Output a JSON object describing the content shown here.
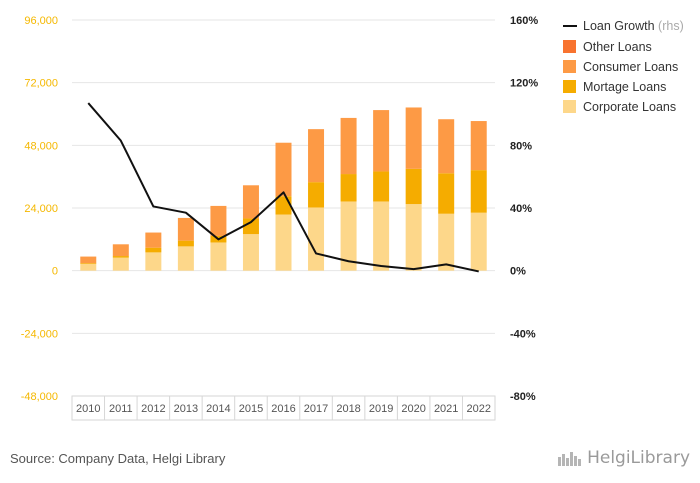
{
  "chart_data": {
    "type": "bar",
    "stacked": true,
    "categories": [
      "2010",
      "2011",
      "2012",
      "2013",
      "2014",
      "2015",
      "2016",
      "2017",
      "2018",
      "2019",
      "2020",
      "2021",
      "2022"
    ],
    "series": [
      {
        "name": "Corporate Loans",
        "color": "#fdd78a",
        "values": [
          2600,
          5000,
          7000,
          9300,
          10800,
          14000,
          21500,
          24200,
          26500,
          26500,
          25500,
          21800,
          22200
        ]
      },
      {
        "name": "Mortage Loans",
        "color": "#f5ac00",
        "values": [
          300,
          600,
          1800,
          2200,
          2500,
          6000,
          7000,
          9700,
          10500,
          11500,
          13500,
          15500,
          16300
        ]
      },
      {
        "name": "Consumer Loans",
        "color": "#fd9a45",
        "values": [
          2500,
          4500,
          5800,
          8700,
          11500,
          12700,
          20500,
          20300,
          21500,
          23500,
          23500,
          20700,
          18800
        ]
      },
      {
        "name": "Other Loans",
        "color": "#f8732f",
        "values": [
          0,
          0,
          0,
          0,
          0,
          0,
          0,
          0,
          0,
          0,
          0,
          0,
          0
        ]
      }
    ],
    "line_series": {
      "name": "Loan Growth",
      "suffix": "(rhs)",
      "color": "#111111",
      "axis": "right",
      "values": [
        107,
        83,
        41,
        37,
        20,
        31,
        50,
        11,
        6,
        3,
        1,
        4,
        -0.5
      ]
    },
    "y_left": {
      "min": -48000,
      "max": 96000,
      "ticks": [
        "96,000",
        "72,000",
        "48,000",
        "24,000",
        "0",
        "-24,000",
        "-48,000"
      ],
      "color": "#f5b800"
    },
    "y_right": {
      "min": -80,
      "max": 160,
      "ticks": [
        "160%",
        "120%",
        "80%",
        "40%",
        "0%",
        "-40%",
        "-80%"
      ]
    },
    "grid": true,
    "legend_position": "top-right"
  },
  "footer": {
    "source": "Source: Company Data, Helgi Library",
    "logo_text": "HelgiLibrary"
  }
}
